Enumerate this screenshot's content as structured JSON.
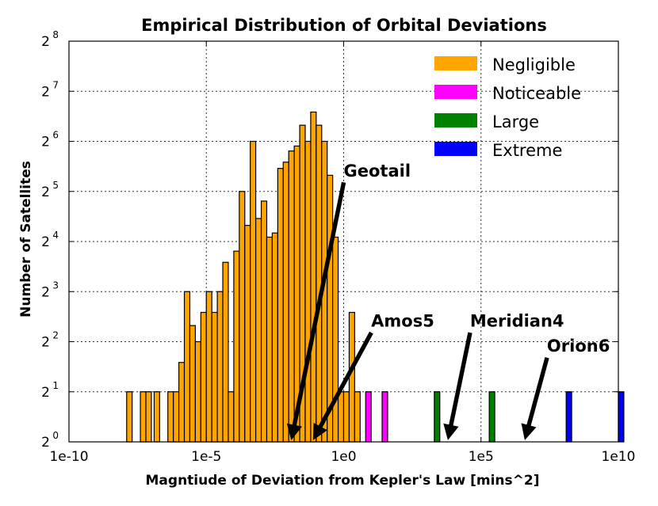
{
  "chart_data": {
    "type": "histogram",
    "title": "Empirical Distribution of Orbital Deviations",
    "xlabel": "Magntiude of Deviation from Kepler's Law [mins^2]",
    "ylabel": "Number of Satellites",
    "x_scale": "log10",
    "y_scale": "log2",
    "xlim_log10": [
      -10,
      10
    ],
    "ylim_log2": [
      0,
      8
    ],
    "grid": true,
    "legend_position": "top-right",
    "x_ticks": [
      {
        "value": -10,
        "label": "1e-10"
      },
      {
        "value": -5,
        "label": "1e-5"
      },
      {
        "value": 0,
        "label": "1e0"
      },
      {
        "value": 5,
        "label": "1e5"
      },
      {
        "value": 10,
        "label": "1e10"
      }
    ],
    "y_ticks": [
      {
        "value": 0,
        "base": "2",
        "exp": "0"
      },
      {
        "value": 1,
        "base": "2",
        "exp": "1"
      },
      {
        "value": 2,
        "base": "2",
        "exp": "2"
      },
      {
        "value": 3,
        "base": "2",
        "exp": "3"
      },
      {
        "value": 4,
        "base": "2",
        "exp": "4"
      },
      {
        "value": 5,
        "base": "2",
        "exp": "5"
      },
      {
        "value": 6,
        "base": "2",
        "exp": "6"
      },
      {
        "value": 7,
        "base": "2",
        "exp": "7"
      },
      {
        "value": 8,
        "base": "2",
        "exp": "8"
      }
    ],
    "bin_width_log10": 0.2,
    "series": [
      {
        "name": "Negligible",
        "color": "#FFA500",
        "bins": [
          {
            "x": -7.8,
            "count": 2
          },
          {
            "x": -7.3,
            "count": 2
          },
          {
            "x": -7.1,
            "count": 2
          },
          {
            "x": -6.8,
            "count": 2
          },
          {
            "x": -6.3,
            "count": 2
          },
          {
            "x": -6.1,
            "count": 2
          },
          {
            "x": -5.9,
            "count": 3
          },
          {
            "x": -5.7,
            "count": 8
          },
          {
            "x": -5.5,
            "count": 5
          },
          {
            "x": -5.3,
            "count": 4
          },
          {
            "x": -5.1,
            "count": 6
          },
          {
            "x": -4.9,
            "count": 8
          },
          {
            "x": -4.7,
            "count": 6
          },
          {
            "x": -4.5,
            "count": 8
          },
          {
            "x": -4.3,
            "count": 12
          },
          {
            "x": -4.1,
            "count": 2
          },
          {
            "x": -3.9,
            "count": 14
          },
          {
            "x": -3.7,
            "count": 32
          },
          {
            "x": -3.5,
            "count": 20
          },
          {
            "x": -3.3,
            "count": 64
          },
          {
            "x": -3.1,
            "count": 22
          },
          {
            "x": -2.9,
            "count": 28
          },
          {
            "x": -2.7,
            "count": 17
          },
          {
            "x": -2.5,
            "count": 18
          },
          {
            "x": -2.3,
            "count": 44
          },
          {
            "x": -2.1,
            "count": 48
          },
          {
            "x": -1.9,
            "count": 56
          },
          {
            "x": -1.7,
            "count": 60
          },
          {
            "x": -1.5,
            "count": 80
          },
          {
            "x": -1.3,
            "count": 64
          },
          {
            "x": -1.1,
            "count": 96
          },
          {
            "x": -0.9,
            "count": 80
          },
          {
            "x": -0.7,
            "count": 64
          },
          {
            "x": -0.5,
            "count": 40
          },
          {
            "x": -0.3,
            "count": 17
          },
          {
            "x": -0.1,
            "count": 2
          },
          {
            "x": 0.1,
            "count": 2
          },
          {
            "x": 0.3,
            "count": 6
          },
          {
            "x": 0.5,
            "count": 2
          }
        ]
      },
      {
        "name": "Noticeable",
        "color": "#FF00FF",
        "bins": [
          {
            "x": 0.9,
            "count": 2
          },
          {
            "x": 1.5,
            "count": 2
          }
        ]
      },
      {
        "name": "Large",
        "color": "#008000",
        "bins": [
          {
            "x": 3.4,
            "count": 2
          },
          {
            "x": 5.4,
            "count": 2
          }
        ]
      },
      {
        "name": "Extreme",
        "color": "#0000FF",
        "bins": [
          {
            "x": 8.2,
            "count": 2
          },
          {
            "x": 10.1,
            "count": 2
          }
        ]
      }
    ],
    "annotations": [
      {
        "label": "Geotail",
        "text_at": [
          0.0,
          5.3
        ],
        "arrow_to": [
          -1.9,
          0.05
        ]
      },
      {
        "label": "Amos5",
        "text_at": [
          1.0,
          2.3
        ],
        "arrow_to": [
          -1.1,
          0.05
        ]
      },
      {
        "label": "Meridian4",
        "text_at": [
          4.6,
          2.3
        ],
        "arrow_to": [
          3.8,
          0.05
        ]
      },
      {
        "label": "Orion6",
        "text_at": [
          7.4,
          1.8
        ],
        "arrow_to": [
          6.6,
          0.05
        ]
      }
    ]
  }
}
